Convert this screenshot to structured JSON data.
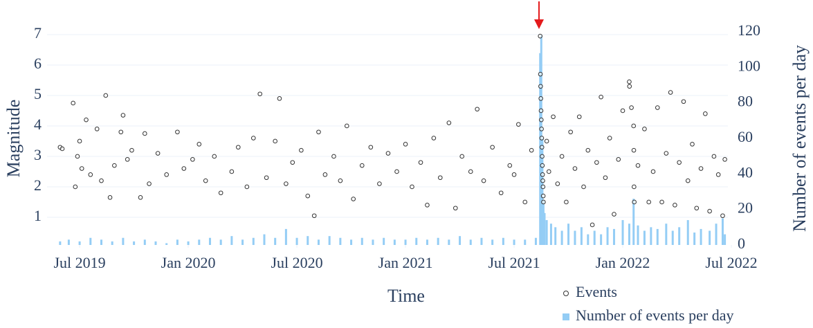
{
  "chart_data": {
    "type": "scatter",
    "x_label": "Time",
    "y_label": "Magnitude",
    "y2_label": "Number of events per day",
    "xlim": [
      2019.35,
      2022.484
    ],
    "ylim": [
      0.09,
      7.09
    ],
    "y2lim": [
      0,
      120
    ],
    "xticks": [
      {
        "value": 2019.5,
        "label": "Jul 2019"
      },
      {
        "value": 2020.0,
        "label": "Jan 2020"
      },
      {
        "value": 2020.5,
        "label": "Jul 2020"
      },
      {
        "value": 2021.0,
        "label": "Jan 2021"
      },
      {
        "value": 2021.5,
        "label": "Jul 2021"
      },
      {
        "value": 2022.0,
        "label": "Jan 2022"
      },
      {
        "value": 2022.5,
        "label": "Jul 2022"
      }
    ],
    "yticks": [
      1,
      2,
      3,
      4,
      5,
      6,
      7
    ],
    "y2ticks": [
      0,
      20,
      40,
      60,
      80,
      100,
      120
    ],
    "grid": true,
    "series": [
      {
        "name": "Number of events per day",
        "type": "bar",
        "axis": "y2",
        "color": "#94cdf5",
        "x": [
          2019.41,
          2019.45,
          2019.5,
          2019.55,
          2019.6,
          2019.65,
          2019.7,
          2019.75,
          2019.8,
          2019.85,
          2019.9,
          2019.95,
          2020.0,
          2020.05,
          2020.1,
          2020.15,
          2020.2,
          2020.25,
          2020.3,
          2020.35,
          2020.4,
          2020.45,
          2020.5,
          2020.55,
          2020.6,
          2020.65,
          2020.7,
          2020.75,
          2020.8,
          2020.85,
          2020.9,
          2020.95,
          2021.0,
          2021.05,
          2021.1,
          2021.15,
          2021.2,
          2021.25,
          2021.3,
          2021.35,
          2021.4,
          2021.45,
          2021.5,
          2021.55,
          2021.6,
          2021.62,
          2021.625,
          2021.63,
          2021.635,
          2021.64,
          2021.65,
          2021.67,
          2021.69,
          2021.72,
          2021.75,
          2021.78,
          2021.81,
          2021.84,
          2021.87,
          2021.9,
          2021.93,
          2021.96,
          2022.0,
          2022.03,
          2022.05,
          2022.07,
          2022.1,
          2022.13,
          2022.16,
          2022.2,
          2022.23,
          2022.26,
          2022.3,
          2022.33,
          2022.36,
          2022.4,
          2022.43,
          2022.46,
          2022.47
        ],
        "values": [
          2,
          3,
          2,
          4,
          3,
          2,
          4,
          2,
          3,
          2,
          1,
          3,
          2,
          3,
          4,
          3,
          5,
          3,
          4,
          6,
          4,
          9,
          4,
          5,
          3,
          5,
          4,
          3,
          4,
          3,
          4,
          3,
          3,
          4,
          3,
          4,
          3,
          5,
          3,
          4,
          3,
          4,
          3,
          3,
          4,
          108,
          118,
          60,
          25,
          18,
          14,
          12,
          10,
          8,
          12,
          8,
          10,
          6,
          8,
          6,
          10,
          9,
          14,
          12,
          26,
          11,
          8,
          10,
          9,
          12,
          8,
          10,
          14,
          7,
          9,
          8,
          12,
          15,
          6
        ]
      },
      {
        "name": "Events",
        "type": "scatter",
        "axis": "y",
        "color": "#333333",
        "x": [
          2019.41,
          2019.42,
          2019.47,
          2019.48,
          2019.49,
          2019.5,
          2019.51,
          2019.53,
          2019.55,
          2019.58,
          2019.6,
          2019.62,
          2019.64,
          2019.66,
          2019.69,
          2019.7,
          2019.72,
          2019.74,
          2019.78,
          2019.8,
          2019.82,
          2019.86,
          2019.9,
          2019.95,
          2019.98,
          2020.02,
          2020.05,
          2020.08,
          2020.12,
          2020.15,
          2020.2,
          2020.23,
          2020.27,
          2020.3,
          2020.33,
          2020.36,
          2020.4,
          2020.42,
          2020.45,
          2020.48,
          2020.52,
          2020.55,
          2020.58,
          2020.6,
          2020.63,
          2020.67,
          2020.7,
          2020.73,
          2020.76,
          2020.8,
          2020.84,
          2020.88,
          2020.92,
          2020.96,
          2021.0,
          2021.03,
          2021.07,
          2021.1,
          2021.13,
          2021.16,
          2021.2,
          2021.23,
          2021.26,
          2021.3,
          2021.33,
          2021.36,
          2021.4,
          2021.44,
          2021.48,
          2021.5,
          2021.52,
          2021.55,
          2021.58,
          2021.62,
          2021.621,
          2021.622,
          2021.623,
          2021.624,
          2021.625,
          2021.626,
          2021.627,
          2021.628,
          2021.629,
          2021.63,
          2021.631,
          2021.632,
          2021.633,
          2021.634,
          2021.635,
          2021.65,
          2021.66,
          2021.68,
          2021.7,
          2021.72,
          2021.74,
          2021.76,
          2021.78,
          2021.8,
          2021.82,
          2021.84,
          2021.86,
          2021.88,
          2021.9,
          2021.92,
          2021.94,
          2021.96,
          2021.98,
          2022.0,
          2022.03,
          2022.031,
          2022.04,
          2022.05,
          2022.051,
          2022.052,
          2022.053,
          2022.07,
          2022.1,
          2022.12,
          2022.14,
          2022.16,
          2022.18,
          2022.2,
          2022.22,
          2022.24,
          2022.26,
          2022.28,
          2022.3,
          2022.32,
          2022.34,
          2022.36,
          2022.38,
          2022.4,
          2022.42,
          2022.44,
          2022.46,
          2022.47
        ],
        "values": [
          3.3,
          3.25,
          4.75,
          2.0,
          3.0,
          3.5,
          2.6,
          4.2,
          2.4,
          3.9,
          2.2,
          5.0,
          1.65,
          2.7,
          3.8,
          4.35,
          2.9,
          3.2,
          1.65,
          3.75,
          2.1,
          3.1,
          2.4,
          3.8,
          2.6,
          2.9,
          3.4,
          2.2,
          3.0,
          1.8,
          2.5,
          3.3,
          2.0,
          3.6,
          5.05,
          2.3,
          3.5,
          4.9,
          2.1,
          2.8,
          3.2,
          1.7,
          1.05,
          3.8,
          2.4,
          3.0,
          2.2,
          4.0,
          1.6,
          2.7,
          3.3,
          2.1,
          3.1,
          2.5,
          3.4,
          2.0,
          2.8,
          1.4,
          3.6,
          2.3,
          4.1,
          1.3,
          3.0,
          2.5,
          4.55,
          2.2,
          3.3,
          1.8,
          2.7,
          2.4,
          4.05,
          1.5,
          3.2,
          6.95,
          5.7,
          5.3,
          4.9,
          4.5,
          4.2,
          3.9,
          3.6,
          3.3,
          3.0,
          2.7,
          2.4,
          2.2,
          2.0,
          1.7,
          1.5,
          3.5,
          2.5,
          4.3,
          2.1,
          3.0,
          1.5,
          3.8,
          2.6,
          4.3,
          2.0,
          3.2,
          0.75,
          2.8,
          4.95,
          2.3,
          3.6,
          1.1,
          2.9,
          4.5,
          5.45,
          5.3,
          4.6,
          4.0,
          3.2,
          2.0,
          1.5,
          2.7,
          3.9,
          1.5,
          2.5,
          4.6,
          1.5,
          3.1,
          5.1,
          1.4,
          2.8,
          4.8,
          2.2,
          3.4,
          1.3,
          2.6,
          4.4,
          1.2,
          3.0,
          2.4,
          1.05,
          2.9
        ]
      }
    ]
  }
}
